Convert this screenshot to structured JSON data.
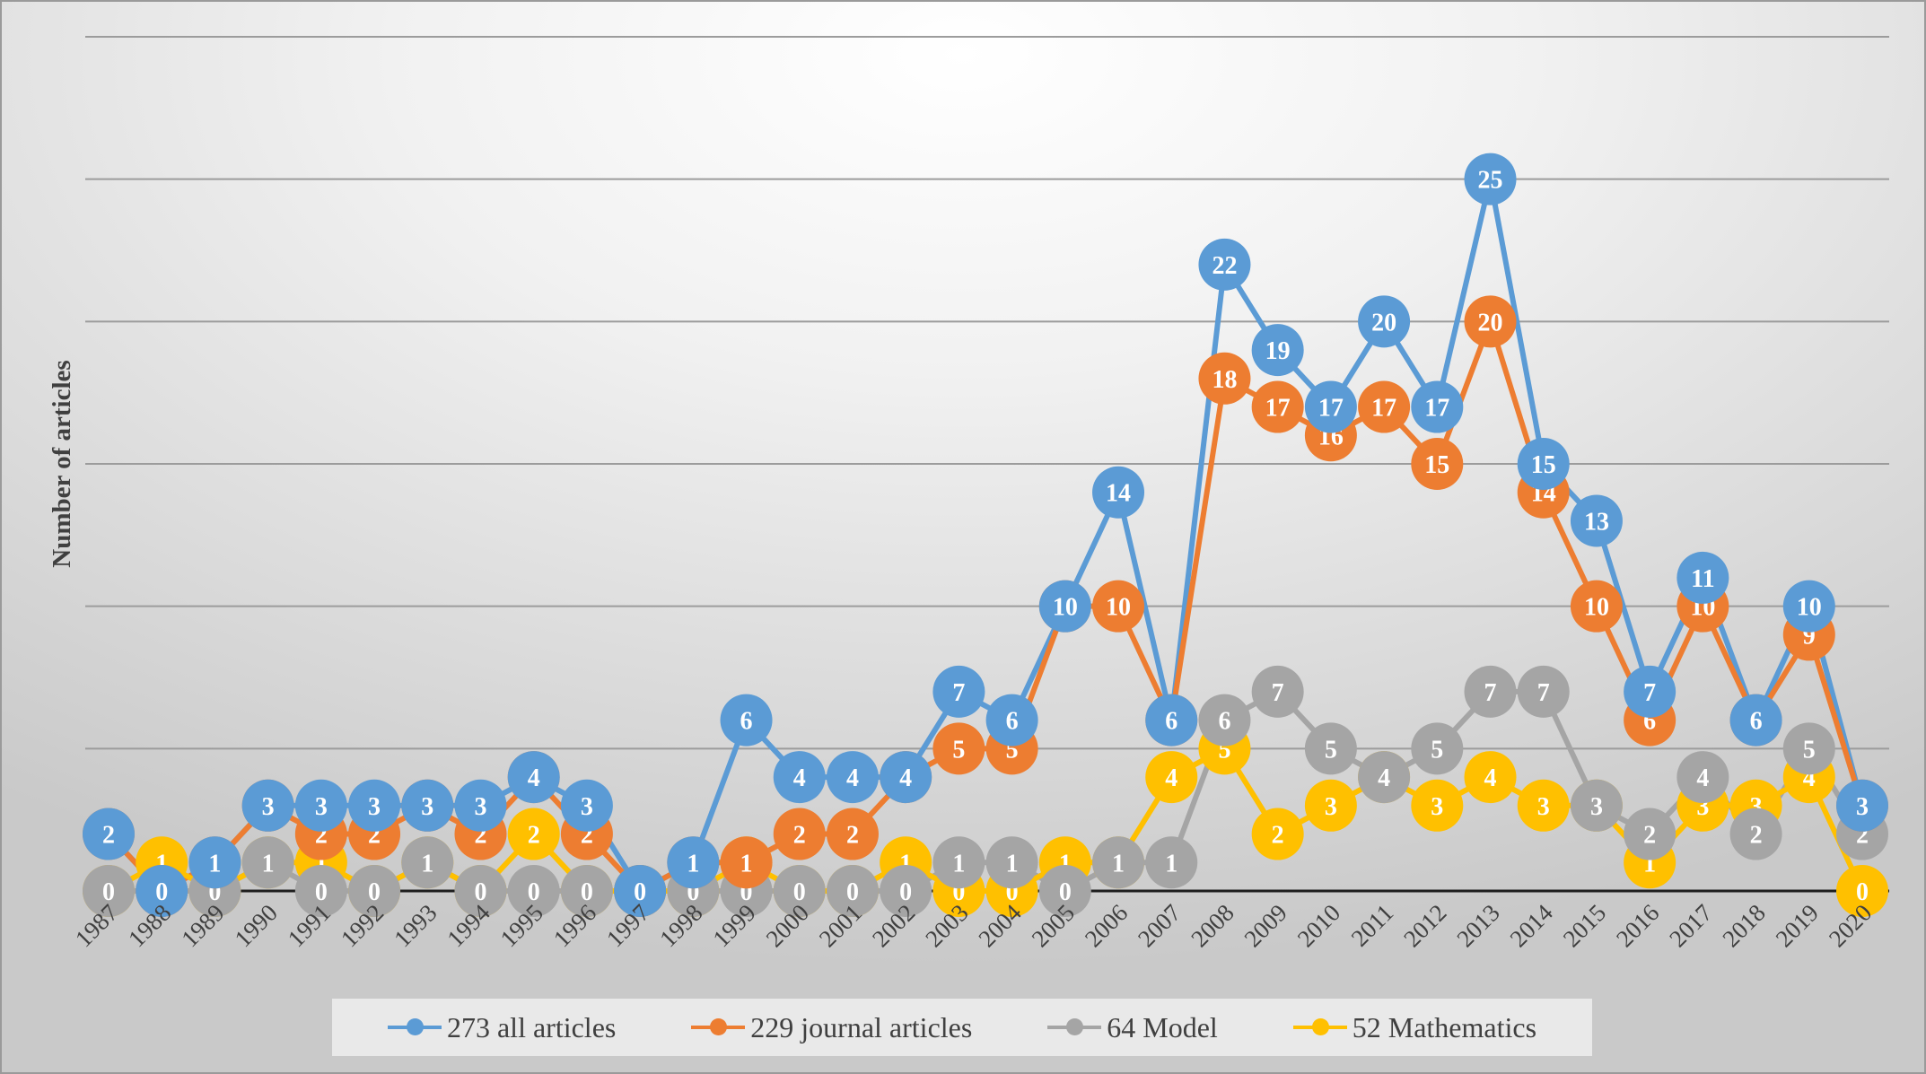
{
  "chart_data": {
    "type": "line",
    "title": "",
    "xlabel": "",
    "ylabel": "Number of articles",
    "ylim": [
      0,
      30
    ],
    "grid": true,
    "legend_position": "bottom",
    "categories": [
      "1987",
      "1988",
      "1989",
      "1990",
      "1991",
      "1992",
      "1993",
      "1994",
      "1995",
      "1996",
      "1997",
      "1998",
      "1999",
      "2000",
      "2001",
      "2002",
      "2003",
      "2004",
      "2005",
      "2006",
      "2007",
      "2008",
      "2009",
      "2010",
      "2011",
      "2012",
      "2013",
      "2014",
      "2015",
      "2016",
      "2017",
      "2018",
      "2019",
      "2020"
    ],
    "series": [
      {
        "name": "273 all articles",
        "color": "#5b9bd5",
        "values": [
          2,
          0,
          1,
          3,
          3,
          3,
          3,
          3,
          4,
          3,
          0,
          1,
          6,
          4,
          4,
          4,
          7,
          6,
          10,
          14,
          6,
          22,
          19,
          17,
          20,
          17,
          25,
          15,
          13,
          7,
          11,
          6,
          10,
          3
        ]
      },
      {
        "name": "229 journal articles",
        "color": "#ed7d31",
        "values": [
          2,
          0,
          1,
          3,
          2,
          2,
          3,
          2,
          4,
          2,
          0,
          1,
          1,
          2,
          2,
          4,
          5,
          5,
          10,
          10,
          6,
          18,
          17,
          16,
          17,
          15,
          20,
          14,
          10,
          6,
          10,
          6,
          9,
          3
        ]
      },
      {
        "name": "64 Model",
        "color": "#a5a5a5",
        "values": [
          0,
          0,
          0,
          1,
          0,
          0,
          1,
          0,
          0,
          0,
          0,
          0,
          0,
          0,
          0,
          0,
          1,
          1,
          0,
          1,
          1,
          6,
          7,
          5,
          4,
          5,
          7,
          7,
          3,
          2,
          4,
          2,
          5,
          2
        ]
      },
      {
        "name": "52 Mathematics",
        "color": "#ffc000",
        "values": [
          0,
          1,
          0,
          1,
          1,
          0,
          1,
          0,
          2,
          0,
          0,
          0,
          1,
          0,
          0,
          1,
          0,
          0,
          1,
          1,
          4,
          5,
          2,
          3,
          4,
          3,
          4,
          3,
          3,
          1,
          3,
          3,
          4,
          0
        ]
      }
    ]
  }
}
